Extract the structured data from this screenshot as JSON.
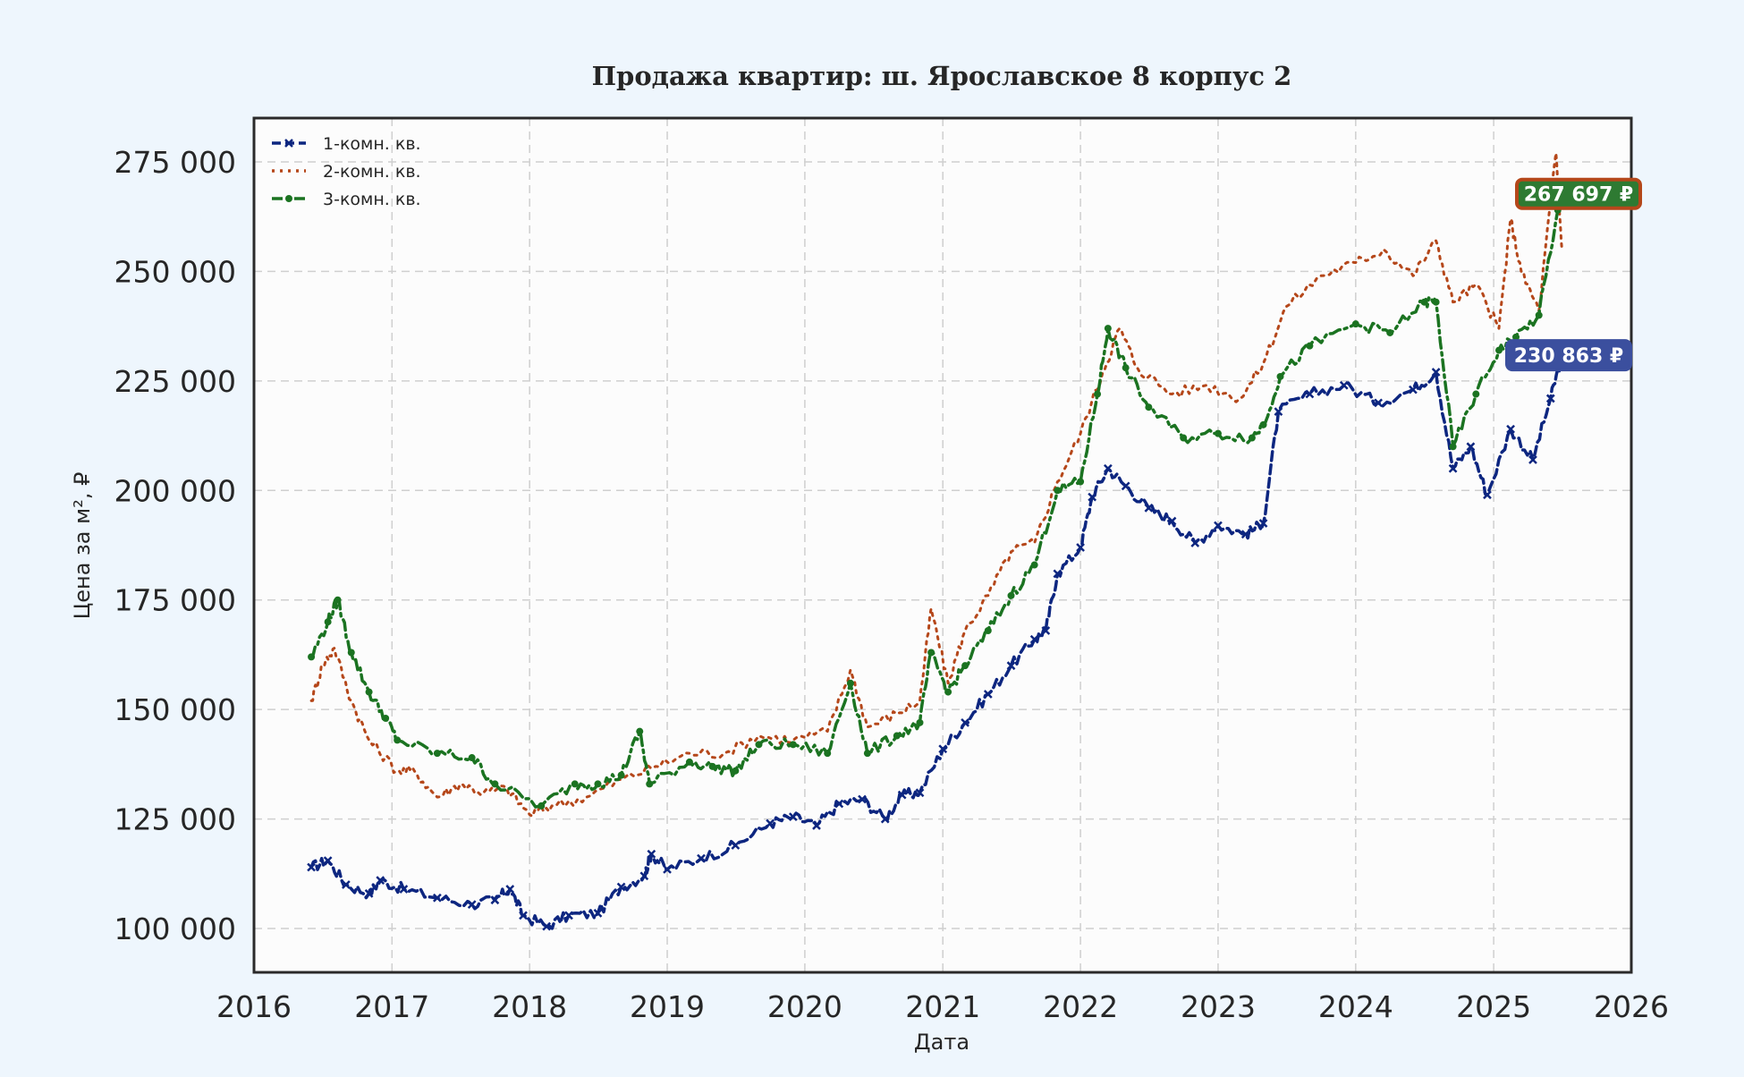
{
  "chart_data": {
    "type": "line",
    "title": "Продажа квартир: ш. Ярославское 8 корпус 2",
    "xlabel": "Дата",
    "ylabel": "Цена за м², ₽",
    "xlim": [
      "2016-01-01",
      "2026-01-01"
    ],
    "ylim": [
      90000,
      285000
    ],
    "x_ticks": [
      "2016",
      "2017",
      "2018",
      "2019",
      "2020",
      "2021",
      "2022",
      "2023",
      "2024",
      "2025",
      "2026"
    ],
    "y_ticks": [
      "100 000",
      "125 000",
      "150 000",
      "175 000",
      "200 000",
      "225 000",
      "250 000",
      "275 000"
    ],
    "y_tick_values": [
      100000,
      125000,
      150000,
      175000,
      200000,
      225000,
      250000,
      275000
    ],
    "grid": true,
    "legend_position": "top-left",
    "series": [
      {
        "name": "1-комн. кв.",
        "color": "#0d2680",
        "line_style": "dashed",
        "marker": "x",
        "points": [
          [
            "2016-06-01",
            114000
          ],
          [
            "2016-07-15",
            115500
          ],
          [
            "2016-09-01",
            110000
          ],
          [
            "2016-11-01",
            108000
          ],
          [
            "2016-12-01",
            111000
          ],
          [
            "2017-02-01",
            109000
          ],
          [
            "2017-05-01",
            107000
          ],
          [
            "2017-08-01",
            105500
          ],
          [
            "2017-10-01",
            106500
          ],
          [
            "2017-11-10",
            109000
          ],
          [
            "2017-12-15",
            103000
          ],
          [
            "2018-02-15",
            100500
          ],
          [
            "2018-04-15",
            103000
          ],
          [
            "2018-07-01",
            103500
          ],
          [
            "2018-09-01",
            109500
          ],
          [
            "2018-11-01",
            112000
          ],
          [
            "2018-11-20",
            117000
          ],
          [
            "2019-01-01",
            113500
          ],
          [
            "2019-04-01",
            116000
          ],
          [
            "2019-07-01",
            119000
          ],
          [
            "2019-10-01",
            124000
          ],
          [
            "2019-12-01",
            125500
          ],
          [
            "2020-02-01",
            123500
          ],
          [
            "2020-04-01",
            128500
          ],
          [
            "2020-06-01",
            129500
          ],
          [
            "2020-08-01",
            125000
          ],
          [
            "2020-09-15",
            130500
          ],
          [
            "2020-11-01",
            131000
          ],
          [
            "2021-01-01",
            141000
          ],
          [
            "2021-03-01",
            147000
          ],
          [
            "2021-05-01",
            153500
          ],
          [
            "2021-07-01",
            160000
          ],
          [
            "2021-09-01",
            166000
          ],
          [
            "2021-10-01",
            168000
          ],
          [
            "2021-11-01",
            181000
          ],
          [
            "2022-01-01",
            187000
          ],
          [
            "2022-02-01",
            198500
          ],
          [
            "2022-03-15",
            205000
          ],
          [
            "2022-05-01",
            201000
          ],
          [
            "2022-07-01",
            196000
          ],
          [
            "2022-09-01",
            193000
          ],
          [
            "2022-11-01",
            188000
          ],
          [
            "2023-01-01",
            192000
          ],
          [
            "2023-03-15",
            190000
          ],
          [
            "2023-05-01",
            192500
          ],
          [
            "2023-06-10",
            218000
          ],
          [
            "2023-09-01",
            222000
          ],
          [
            "2023-12-01",
            224000
          ],
          [
            "2024-03-01",
            220000
          ],
          [
            "2024-06-01",
            223000
          ],
          [
            "2024-08-01",
            227000
          ],
          [
            "2024-09-15",
            205000
          ],
          [
            "2024-11-01",
            210000
          ],
          [
            "2024-12-15",
            199000
          ],
          [
            "2025-02-15",
            214000
          ],
          [
            "2025-04-15",
            207000
          ],
          [
            "2025-06-01",
            221000
          ],
          [
            "2025-07-01",
            230863
          ]
        ]
      },
      {
        "name": "2-комн. кв.",
        "color": "#b5471a",
        "line_style": "dotted",
        "marker": "none",
        "points": [
          [
            "2016-06-01",
            152000
          ],
          [
            "2016-07-01",
            160000
          ],
          [
            "2016-08-01",
            164000
          ],
          [
            "2016-09-15",
            152000
          ],
          [
            "2016-11-01",
            143000
          ],
          [
            "2017-01-15",
            136000
          ],
          [
            "2017-03-01",
            136000
          ],
          [
            "2017-05-01",
            130000
          ],
          [
            "2017-07-01",
            133000
          ],
          [
            "2017-09-01",
            131000
          ],
          [
            "2017-11-01",
            132000
          ],
          [
            "2018-01-01",
            126000
          ],
          [
            "2018-03-01",
            128000
          ],
          [
            "2018-06-01",
            130000
          ],
          [
            "2018-09-01",
            134000
          ],
          [
            "2018-12-01",
            137000
          ],
          [
            "2019-03-01",
            140000
          ],
          [
            "2019-06-01",
            140000
          ],
          [
            "2019-09-01",
            144000
          ],
          [
            "2019-12-01",
            143000
          ],
          [
            "2020-03-01",
            145000
          ],
          [
            "2020-05-01",
            159000
          ],
          [
            "2020-06-15",
            146000
          ],
          [
            "2020-09-01",
            149000
          ],
          [
            "2020-11-01",
            152000
          ],
          [
            "2020-12-01",
            173000
          ],
          [
            "2021-01-15",
            156000
          ],
          [
            "2021-03-01",
            168000
          ],
          [
            "2021-05-01",
            176000
          ],
          [
            "2021-07-01",
            186000
          ],
          [
            "2021-09-01",
            188000
          ],
          [
            "2021-11-01",
            202000
          ],
          [
            "2022-01-01",
            213000
          ],
          [
            "2022-03-01",
            227000
          ],
          [
            "2022-04-15",
            237000
          ],
          [
            "2022-06-01",
            228000
          ],
          [
            "2022-09-01",
            222000
          ],
          [
            "2022-12-01",
            224000
          ],
          [
            "2023-03-01",
            221000
          ],
          [
            "2023-05-01",
            229000
          ],
          [
            "2023-07-01",
            242000
          ],
          [
            "2023-10-01",
            249000
          ],
          [
            "2024-01-01",
            252000
          ],
          [
            "2024-03-15",
            255000
          ],
          [
            "2024-06-01",
            249000
          ],
          [
            "2024-08-01",
            257000
          ],
          [
            "2024-09-15",
            243000
          ],
          [
            "2024-11-15",
            247000
          ],
          [
            "2025-01-15",
            237000
          ],
          [
            "2025-02-15",
            262000
          ],
          [
            "2025-03-15",
            250000
          ],
          [
            "2025-05-01",
            241000
          ],
          [
            "2025-06-15",
            277000
          ],
          [
            "2025-07-01",
            255000
          ]
        ]
      },
      {
        "name": "3-комн. кв.",
        "color": "#1b7321",
        "line_style": "dashdot",
        "marker": "dot",
        "points": [
          [
            "2016-06-01",
            162000
          ],
          [
            "2016-07-15",
            170000
          ],
          [
            "2016-08-10",
            175000
          ],
          [
            "2016-09-15",
            163000
          ],
          [
            "2016-11-01",
            154000
          ],
          [
            "2016-12-15",
            148000
          ],
          [
            "2017-01-15",
            143000
          ],
          [
            "2017-05-01",
            140000
          ],
          [
            "2017-08-01",
            139000
          ],
          [
            "2017-10-01",
            133000
          ],
          [
            "2018-02-01",
            128000
          ],
          [
            "2018-05-01",
            133000
          ],
          [
            "2018-07-01",
            133000
          ],
          [
            "2018-09-01",
            135000
          ],
          [
            "2018-10-20",
            145000
          ],
          [
            "2018-11-15",
            133000
          ],
          [
            "2019-03-01",
            138000
          ],
          [
            "2019-05-01",
            137000
          ],
          [
            "2019-07-01",
            136000
          ],
          [
            "2019-09-01",
            142000
          ],
          [
            "2019-12-01",
            142000
          ],
          [
            "2020-03-01",
            140000
          ],
          [
            "2020-05-01",
            156000
          ],
          [
            "2020-06-15",
            140000
          ],
          [
            "2020-09-01",
            144000
          ],
          [
            "2020-11-01",
            147000
          ],
          [
            "2020-12-01",
            163000
          ],
          [
            "2021-01-15",
            154000
          ],
          [
            "2021-03-01",
            160000
          ],
          [
            "2021-05-01",
            168000
          ],
          [
            "2021-07-01",
            176000
          ],
          [
            "2021-09-01",
            183000
          ],
          [
            "2021-11-01",
            200000
          ],
          [
            "2022-01-01",
            202000
          ],
          [
            "2022-02-15",
            222000
          ],
          [
            "2022-03-15",
            237000
          ],
          [
            "2022-05-01",
            228000
          ],
          [
            "2022-07-01",
            219000
          ],
          [
            "2022-10-01",
            212000
          ],
          [
            "2023-01-01",
            213000
          ],
          [
            "2023-04-01",
            212000
          ],
          [
            "2023-05-01",
            215000
          ],
          [
            "2023-06-15",
            226000
          ],
          [
            "2023-09-01",
            233000
          ],
          [
            "2024-01-01",
            238000
          ],
          [
            "2024-04-01",
            236000
          ],
          [
            "2024-07-01",
            243000
          ],
          [
            "2024-08-01",
            243000
          ],
          [
            "2024-09-15",
            210000
          ],
          [
            "2024-11-15",
            222000
          ],
          [
            "2025-01-15",
            232000
          ],
          [
            "2025-03-01",
            235000
          ],
          [
            "2025-05-01",
            240000
          ],
          [
            "2025-06-20",
            264000
          ],
          [
            "2025-07-01",
            267697
          ]
        ]
      }
    ],
    "annotations": [
      {
        "series": "3-комн. кв.",
        "text": "267 697 ₽",
        "color": "#2e7a32",
        "border": "#b5471a",
        "y": 267697
      },
      {
        "series": "1-комн. кв.",
        "text": "230 863 ₽",
        "color": "#3b4f9e",
        "border": "#3b4f9e",
        "y": 230863
      }
    ]
  }
}
